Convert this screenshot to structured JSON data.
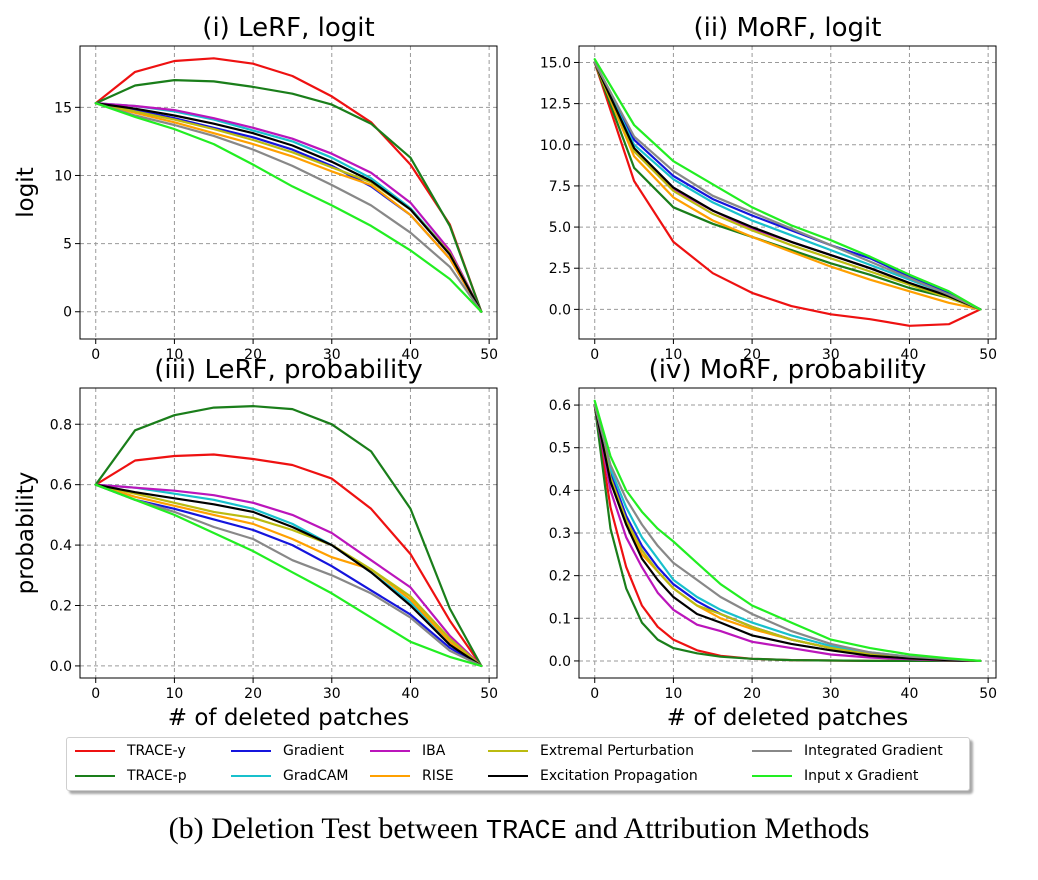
{
  "figure": {
    "caption_prefix": "(b) Deletion Test between ",
    "caption_mono": "TRACE",
    "caption_suffix": " and Attribution Methods"
  },
  "legend": {
    "entries": [
      {
        "name": "TRACE-y",
        "color": "#ee1111"
      },
      {
        "name": "TRACE-p",
        "color": "#1a7e1a"
      },
      {
        "name": "Gradient",
        "color": "#1515dd"
      },
      {
        "name": "GradCAM",
        "color": "#18c0cc"
      },
      {
        "name": "IBA",
        "color": "#bb15bb"
      },
      {
        "name": "RISE",
        "color": "#ffa000"
      },
      {
        "name": "Extremal Perturbation",
        "color": "#bbbb10"
      },
      {
        "name": "Excitation Propagation",
        "color": "#000000"
      },
      {
        "name": "Integrated Gradient",
        "color": "#888888"
      },
      {
        "name": "Input x Gradient",
        "color": "#22ee22"
      }
    ]
  },
  "chart_data": [
    {
      "type": "line",
      "title": "(i) LeRF, logit",
      "xlabel": "",
      "ylabel": "logit",
      "xlim": [
        -2,
        51
      ],
      "ylim": [
        -2,
        19.5
      ],
      "xticks": [
        0,
        10,
        20,
        30,
        40,
        50
      ],
      "yticks": [
        0,
        5,
        10,
        15
      ],
      "ytick_labels": [
        "0",
        "5",
        "10",
        "15"
      ],
      "grid": true,
      "x": [
        0,
        5,
        10,
        15,
        20,
        25,
        30,
        35,
        40,
        45,
        49
      ],
      "series": [
        {
          "name": "TRACE-y",
          "values": [
            15.3,
            17.6,
            18.4,
            18.6,
            18.2,
            17.3,
            15.8,
            13.9,
            10.8,
            6.4,
            0.0
          ]
        },
        {
          "name": "TRACE-p",
          "values": [
            15.3,
            16.6,
            17.0,
            16.9,
            16.5,
            16.0,
            15.2,
            13.8,
            11.3,
            6.3,
            0.0
          ]
        },
        {
          "name": "Gradient",
          "values": [
            15.3,
            14.8,
            14.2,
            13.5,
            12.8,
            11.9,
            10.7,
            9.2,
            7.1,
            3.9,
            0.0
          ]
        },
        {
          "name": "GradCAM",
          "values": [
            15.3,
            15.1,
            14.7,
            14.1,
            13.3,
            12.5,
            11.3,
            9.8,
            7.6,
            4.3,
            0.0
          ]
        },
        {
          "name": "IBA",
          "values": [
            15.3,
            15.1,
            14.8,
            14.2,
            13.5,
            12.7,
            11.6,
            10.2,
            8.0,
            4.5,
            0.0
          ]
        },
        {
          "name": "RISE",
          "values": [
            15.3,
            14.6,
            13.9,
            13.1,
            12.3,
            11.4,
            10.3,
            9.3,
            7.1,
            3.9,
            0.0
          ]
        },
        {
          "name": "Extremal Perturbation",
          "values": [
            15.3,
            14.7,
            14.1,
            13.4,
            12.6,
            11.7,
            10.6,
            9.5,
            7.5,
            4.3,
            0.0
          ]
        },
        {
          "name": "Excitation Propagation",
          "values": [
            15.3,
            14.9,
            14.4,
            13.8,
            13.1,
            12.2,
            11.0,
            9.6,
            7.5,
            4.2,
            0.0
          ]
        },
        {
          "name": "Integrated Gradient",
          "values": [
            15.3,
            14.4,
            13.7,
            12.9,
            11.9,
            10.7,
            9.3,
            7.8,
            5.8,
            3.3,
            0.0
          ]
        },
        {
          "name": "Input x Gradient",
          "values": [
            15.3,
            14.3,
            13.4,
            12.3,
            10.8,
            9.2,
            7.8,
            6.3,
            4.5,
            2.4,
            0.0
          ]
        }
      ]
    },
    {
      "type": "line",
      "title": "(ii) MoRF, logit",
      "xlabel": "",
      "ylabel": "",
      "xlim": [
        -2,
        51
      ],
      "ylim": [
        -1.8,
        16.0
      ],
      "xticks": [
        0,
        10,
        20,
        30,
        40,
        50
      ],
      "yticks": [
        0,
        2.5,
        5,
        7.5,
        10,
        12.5,
        15
      ],
      "ytick_labels": [
        "0.0",
        "2.5",
        "5.0",
        "7.5",
        "10.0",
        "12.5",
        "15.0"
      ],
      "grid": true,
      "x": [
        0,
        5,
        10,
        15,
        20,
        25,
        30,
        35,
        40,
        45,
        49
      ],
      "series": [
        {
          "name": "TRACE-y",
          "values": [
            15.0,
            7.8,
            4.1,
            2.2,
            1.0,
            0.2,
            -0.3,
            -0.6,
            -1.0,
            -0.9,
            0.0
          ]
        },
        {
          "name": "TRACE-p",
          "values": [
            15.0,
            8.6,
            6.2,
            5.2,
            4.4,
            3.6,
            2.8,
            2.1,
            1.3,
            0.7,
            0.0
          ]
        },
        {
          "name": "Gradient",
          "values": [
            15.0,
            10.3,
            8.1,
            6.7,
            5.7,
            4.8,
            3.9,
            3.1,
            2.0,
            1.0,
            0.0
          ]
        },
        {
          "name": "GradCAM",
          "values": [
            15.0,
            10.0,
            7.9,
            6.5,
            5.4,
            4.5,
            3.6,
            2.7,
            1.8,
            0.9,
            0.0
          ]
        },
        {
          "name": "IBA",
          "values": [
            15.0,
            9.6,
            7.3,
            6.0,
            4.9,
            4.1,
            3.3,
            2.5,
            1.6,
            0.8,
            0.0
          ]
        },
        {
          "name": "RISE",
          "values": [
            15.0,
            9.3,
            6.8,
            5.4,
            4.4,
            3.5,
            2.6,
            1.8,
            1.1,
            0.4,
            0.0
          ]
        },
        {
          "name": "Extremal Perturbation",
          "values": [
            15.0,
            9.6,
            7.2,
            5.8,
            4.8,
            3.9,
            3.1,
            2.3,
            1.5,
            0.7,
            0.0
          ]
        },
        {
          "name": "Excitation Propagation",
          "values": [
            15.0,
            9.8,
            7.4,
            6.0,
            5.0,
            4.1,
            3.3,
            2.5,
            1.6,
            0.8,
            0.0
          ]
        },
        {
          "name": "Integrated Gradient",
          "values": [
            15.0,
            10.5,
            8.4,
            6.9,
            5.9,
            4.9,
            3.9,
            2.9,
            1.9,
            0.9,
            0.0
          ]
        },
        {
          "name": "Input x Gradient",
          "values": [
            15.2,
            11.2,
            9.0,
            7.6,
            6.2,
            5.1,
            4.2,
            3.2,
            2.1,
            1.1,
            0.0
          ]
        }
      ]
    },
    {
      "type": "line",
      "title": "(iii) LeRF, probability",
      "xlabel": "# of deleted patches",
      "ylabel": "probability",
      "xlim": [
        -2,
        51
      ],
      "ylim": [
        -0.04,
        0.92
      ],
      "xticks": [
        0,
        10,
        20,
        30,
        40,
        50
      ],
      "yticks": [
        0,
        0.2,
        0.4,
        0.6,
        0.8
      ],
      "ytick_labels": [
        "0.0",
        "0.2",
        "0.4",
        "0.6",
        "0.8"
      ],
      "grid": true,
      "x": [
        0,
        5,
        10,
        15,
        20,
        25,
        30,
        35,
        40,
        45,
        49
      ],
      "series": [
        {
          "name": "TRACE-y",
          "values": [
            0.6,
            0.68,
            0.695,
            0.7,
            0.685,
            0.665,
            0.62,
            0.52,
            0.37,
            0.15,
            0.0
          ]
        },
        {
          "name": "TRACE-p",
          "values": [
            0.6,
            0.78,
            0.83,
            0.855,
            0.86,
            0.85,
            0.8,
            0.71,
            0.52,
            0.19,
            0.0
          ]
        },
        {
          "name": "Gradient",
          "values": [
            0.6,
            0.55,
            0.52,
            0.485,
            0.45,
            0.4,
            0.33,
            0.25,
            0.17,
            0.06,
            0.0
          ]
        },
        {
          "name": "GradCAM",
          "values": [
            0.6,
            0.59,
            0.57,
            0.55,
            0.52,
            0.47,
            0.4,
            0.31,
            0.21,
            0.08,
            0.0
          ]
        },
        {
          "name": "IBA",
          "values": [
            0.6,
            0.59,
            0.58,
            0.565,
            0.54,
            0.5,
            0.44,
            0.35,
            0.26,
            0.1,
            0.0
          ]
        },
        {
          "name": "RISE",
          "values": [
            0.6,
            0.56,
            0.53,
            0.5,
            0.47,
            0.42,
            0.36,
            0.32,
            0.22,
            0.08,
            0.0
          ]
        },
        {
          "name": "Extremal Perturbation",
          "values": [
            0.6,
            0.57,
            0.54,
            0.51,
            0.49,
            0.45,
            0.4,
            0.32,
            0.23,
            0.09,
            0.0
          ]
        },
        {
          "name": "Excitation Propagation",
          "values": [
            0.6,
            0.575,
            0.555,
            0.535,
            0.51,
            0.46,
            0.4,
            0.31,
            0.2,
            0.07,
            0.0
          ]
        },
        {
          "name": "Integrated Gradient",
          "values": [
            0.6,
            0.55,
            0.51,
            0.46,
            0.42,
            0.35,
            0.3,
            0.24,
            0.16,
            0.05,
            0.0
          ]
        },
        {
          "name": "Input x Gradient",
          "values": [
            0.6,
            0.55,
            0.5,
            0.44,
            0.38,
            0.31,
            0.24,
            0.16,
            0.08,
            0.03,
            0.0
          ]
        }
      ]
    },
    {
      "type": "line",
      "title": "(iv) MoRF, probability",
      "xlabel": "# of deleted patches",
      "ylabel": "",
      "xlim": [
        -2,
        51
      ],
      "ylim": [
        -0.04,
        0.64
      ],
      "xticks": [
        0,
        10,
        20,
        30,
        40,
        50
      ],
      "yticks": [
        0,
        0.1,
        0.2,
        0.3,
        0.4,
        0.5,
        0.6
      ],
      "ytick_labels": [
        "0.0",
        "0.1",
        "0.2",
        "0.3",
        "0.4",
        "0.5",
        "0.6"
      ],
      "grid": true,
      "x": [
        0,
        2,
        4,
        6,
        8,
        10,
        13,
        16,
        20,
        25,
        30,
        35,
        40,
        45,
        49
      ],
      "series": [
        {
          "name": "TRACE-y",
          "values": [
            0.6,
            0.36,
            0.22,
            0.13,
            0.08,
            0.05,
            0.025,
            0.012,
            0.005,
            0.002,
            0.001,
            0.0,
            0.0,
            0.0,
            0.0
          ]
        },
        {
          "name": "TRACE-p",
          "values": [
            0.6,
            0.31,
            0.17,
            0.09,
            0.05,
            0.03,
            0.018,
            0.01,
            0.005,
            0.002,
            0.001,
            0.0,
            0.0,
            0.0,
            0.0
          ]
        },
        {
          "name": "Gradient",
          "values": [
            0.6,
            0.44,
            0.34,
            0.27,
            0.22,
            0.18,
            0.14,
            0.11,
            0.08,
            0.05,
            0.03,
            0.015,
            0.008,
            0.003,
            0.0
          ]
        },
        {
          "name": "GradCAM",
          "values": [
            0.6,
            0.45,
            0.36,
            0.29,
            0.24,
            0.19,
            0.15,
            0.12,
            0.09,
            0.06,
            0.035,
            0.02,
            0.01,
            0.004,
            0.0
          ]
        },
        {
          "name": "IBA",
          "values": [
            0.6,
            0.4,
            0.29,
            0.22,
            0.16,
            0.12,
            0.085,
            0.07,
            0.045,
            0.03,
            0.015,
            0.008,
            0.004,
            0.001,
            0.0
          ]
        },
        {
          "name": "RISE",
          "values": [
            0.6,
            0.42,
            0.32,
            0.25,
            0.21,
            0.17,
            0.13,
            0.1,
            0.075,
            0.05,
            0.03,
            0.015,
            0.006,
            0.002,
            0.0
          ]
        },
        {
          "name": "Extremal Perturbation",
          "values": [
            0.6,
            0.43,
            0.33,
            0.26,
            0.21,
            0.17,
            0.13,
            0.11,
            0.08,
            0.05,
            0.03,
            0.015,
            0.008,
            0.003,
            0.0
          ]
        },
        {
          "name": "Excitation Propagation",
          "values": [
            0.6,
            0.42,
            0.32,
            0.24,
            0.19,
            0.15,
            0.11,
            0.09,
            0.06,
            0.04,
            0.025,
            0.012,
            0.006,
            0.002,
            0.0
          ]
        },
        {
          "name": "Integrated Gradient",
          "values": [
            0.6,
            0.46,
            0.38,
            0.32,
            0.27,
            0.23,
            0.19,
            0.15,
            0.11,
            0.07,
            0.04,
            0.02,
            0.01,
            0.004,
            0.0
          ]
        },
        {
          "name": "Input x Gradient",
          "values": [
            0.61,
            0.48,
            0.4,
            0.35,
            0.31,
            0.28,
            0.23,
            0.18,
            0.13,
            0.09,
            0.05,
            0.03,
            0.015,
            0.006,
            0.0
          ]
        }
      ]
    }
  ]
}
